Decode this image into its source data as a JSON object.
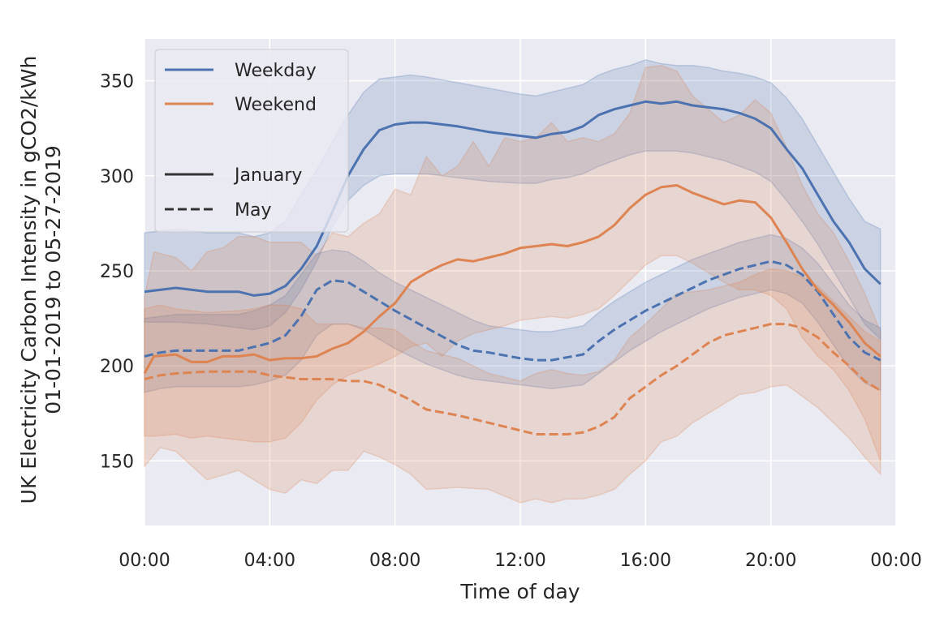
{
  "chart_data": {
    "type": "line",
    "xlabel": "Time of day",
    "ylabel_line1": "UK Electricity Carbon Intensity in gCO2/kWh",
    "ylabel_line2": "01-01-2019 to 05-27-2019",
    "xlim": [
      0,
      24
    ],
    "ylim": [
      116,
      372
    ],
    "x_ticks": [
      {
        "value": 0,
        "label": "00:00"
      },
      {
        "value": 4,
        "label": "04:00"
      },
      {
        "value": 8,
        "label": "08:00"
      },
      {
        "value": 12,
        "label": "12:00"
      },
      {
        "value": 16,
        "label": "16:00"
      },
      {
        "value": 20,
        "label": "20:00"
      },
      {
        "value": 24,
        "label": "00:00"
      }
    ],
    "y_ticks": [
      {
        "value": 150,
        "label": "150"
      },
      {
        "value": 200,
        "label": "200"
      },
      {
        "value": 250,
        "label": "250"
      },
      {
        "value": 300,
        "label": "300"
      },
      {
        "value": 350,
        "label": "350"
      }
    ],
    "grid": true,
    "legend_position": "top-left",
    "legend": {
      "hue": [
        {
          "label": "Weekday",
          "color": "#4c72b0"
        },
        {
          "label": "Weekend",
          "color": "#dd8452"
        }
      ],
      "style": [
        {
          "label": "January",
          "dash": "solid"
        },
        {
          "label": "May",
          "dash": "dashed"
        }
      ]
    },
    "colors": {
      "background": "#eaeaf2",
      "grid": "#ffffff",
      "weekday": "#4c72b0",
      "weekend": "#dd8452",
      "legend_line": "#333333"
    },
    "series": [
      {
        "name": "Weekday",
        "style": "January",
        "color": "#4c72b0",
        "dash": "solid",
        "x": [
          0,
          1,
          2,
          3,
          3.5,
          4,
          4.5,
          5,
          5.5,
          6,
          6.5,
          7,
          7.5,
          8,
          8.5,
          9,
          10,
          11,
          12,
          12.5,
          13,
          13.5,
          14,
          14.5,
          15,
          15.5,
          16,
          16.5,
          17,
          17.5,
          18,
          18.5,
          19,
          19.5,
          20,
          20.5,
          21,
          21.5,
          22,
          22.5,
          23,
          23.5
        ],
        "y": [
          239,
          241,
          239,
          239,
          237,
          238,
          242,
          251,
          263,
          281,
          300,
          314,
          324,
          327,
          328,
          328,
          326,
          323,
          321,
          320,
          322,
          323,
          326,
          332,
          335,
          337,
          339,
          338,
          339,
          337,
          336,
          335,
          333,
          330,
          325,
          314,
          304,
          290,
          276,
          265,
          251,
          243
        ],
        "lower": [
          223,
          223,
          222,
          220,
          219,
          221,
          228,
          240,
          255,
          273,
          287,
          295,
          300,
          301,
          301,
          301,
          299,
          297,
          296,
          296,
          298,
          299,
          301,
          305,
          308,
          311,
          313,
          313,
          313,
          312,
          310,
          308,
          305,
          302,
          297,
          287,
          276,
          264,
          250,
          236,
          222,
          214
        ],
        "upper": [
          270,
          272,
          270,
          270,
          268,
          270,
          276,
          290,
          303,
          318,
          332,
          344,
          351,
          352,
          353,
          352,
          349,
          346,
          343,
          342,
          344,
          346,
          348,
          353,
          356,
          358,
          361,
          359,
          358,
          358,
          357,
          355,
          354,
          352,
          349,
          341,
          330,
          316,
          302,
          288,
          276,
          272
        ]
      },
      {
        "name": "Weekday",
        "style": "May",
        "color": "#4c72b0",
        "dash": "dashed",
        "x": [
          0,
          0.5,
          1,
          2,
          3,
          3.5,
          4,
          4.5,
          5,
          5.5,
          6,
          6.5,
          7,
          7.5,
          8,
          9,
          10,
          10.5,
          11,
          12,
          12.5,
          13,
          14,
          14.5,
          15,
          15.5,
          16,
          16.5,
          17,
          17.5,
          18,
          18.5,
          19,
          19.5,
          20,
          20.5,
          21,
          21.5,
          22,
          22.5,
          23,
          23.5
        ],
        "y": [
          205,
          207,
          208,
          208,
          208,
          210,
          212,
          216,
          226,
          240,
          245,
          244,
          239,
          234,
          229,
          220,
          211,
          208,
          207,
          204,
          203,
          203,
          206,
          213,
          219,
          224,
          229,
          233,
          237,
          241,
          245,
          248,
          251,
          253,
          255,
          253,
          248,
          239,
          227,
          215,
          207,
          203
        ],
        "lower": [
          186,
          188,
          189,
          189,
          189,
          190,
          192,
          195,
          203,
          216,
          222,
          222,
          219,
          214,
          209,
          201,
          195,
          193,
          192,
          190,
          189,
          188,
          190,
          196,
          202,
          208,
          213,
          218,
          222,
          226,
          230,
          233,
          236,
          238,
          240,
          238,
          233,
          223,
          211,
          199,
          191,
          187
        ],
        "upper": [
          225,
          226,
          227,
          227,
          227,
          229,
          232,
          237,
          248,
          259,
          261,
          260,
          255,
          249,
          244,
          236,
          228,
          224,
          221,
          219,
          218,
          218,
          221,
          228,
          234,
          239,
          244,
          248,
          252,
          256,
          259,
          262,
          265,
          267,
          269,
          267,
          262,
          254,
          243,
          232,
          224,
          220
        ]
      },
      {
        "name": "Weekend",
        "style": "January",
        "color": "#dd8452",
        "dash": "solid",
        "x": [
          0,
          0.3,
          1,
          1.5,
          2,
          2.5,
          3,
          3.5,
          4,
          4.5,
          5,
          5.5,
          6,
          6.5,
          7,
          7.5,
          8,
          8.5,
          9,
          9.5,
          10,
          10.5,
          11,
          11.5,
          12,
          12.5,
          13,
          13.5,
          14,
          14.5,
          15,
          15.5,
          16,
          16.5,
          17,
          17.5,
          18,
          18.5,
          19,
          19.5,
          20,
          20.5,
          21,
          21.5,
          22,
          22.5,
          23,
          23.5
        ],
        "y": [
          196,
          205,
          206,
          202,
          202,
          205,
          205,
          206,
          203,
          204,
          204,
          205,
          209,
          212,
          218,
          226,
          233,
          244,
          249,
          253,
          256,
          255,
          257,
          259,
          262,
          263,
          264,
          263,
          265,
          268,
          274,
          283,
          290,
          294,
          295,
          291,
          288,
          285,
          287,
          286,
          278,
          265,
          251,
          240,
          232,
          223,
          212,
          205
        ],
        "lower": [
          163,
          163,
          164,
          162,
          163,
          162,
          161,
          160,
          160,
          162,
          170,
          182,
          190,
          195,
          198,
          201,
          205,
          210,
          212,
          205,
          213,
          217,
          219,
          221,
          224,
          225,
          226,
          225,
          227,
          230,
          237,
          245,
          253,
          258,
          258,
          254,
          249,
          244,
          240,
          240,
          237,
          230,
          215,
          205,
          198,
          187,
          172,
          150
        ],
        "upper": [
          236,
          260,
          257,
          250,
          260,
          262,
          268,
          268,
          265,
          265,
          265,
          258,
          270,
          268,
          275,
          280,
          293,
          290,
          310,
          300,
          305,
          318,
          305,
          320,
          318,
          320,
          328,
          318,
          320,
          318,
          322,
          333,
          357,
          358,
          355,
          342,
          335,
          328,
          332,
          340,
          333,
          315,
          295,
          280,
          270,
          255,
          238,
          218
        ]
      },
      {
        "name": "Weekend",
        "style": "May",
        "color": "#dd8452",
        "dash": "dashed",
        "x": [
          0,
          0.5,
          1,
          2,
          3,
          3.5,
          4,
          4.5,
          5,
          5.5,
          6,
          6.5,
          7,
          7.5,
          8,
          8.5,
          9,
          10,
          11,
          12,
          12.5,
          13,
          13.5,
          14,
          14.5,
          15,
          15.5,
          16,
          16.5,
          17,
          17.5,
          18,
          18.5,
          19,
          19.5,
          20,
          20.5,
          21,
          21.5,
          22,
          22.5,
          23,
          23.5
        ],
        "y": [
          193,
          195,
          196,
          197,
          197,
          197,
          195,
          194,
          193,
          193,
          193,
          192,
          192,
          190,
          186,
          182,
          177,
          174,
          170,
          166,
          164,
          164,
          164,
          165,
          168,
          173,
          183,
          189,
          195,
          200,
          206,
          212,
          216,
          218,
          220,
          222,
          222,
          220,
          215,
          207,
          200,
          192,
          187
        ],
        "lower": [
          147,
          157,
          155,
          140,
          145,
          140,
          135,
          133,
          140,
          138,
          145,
          145,
          155,
          152,
          148,
          143,
          135,
          136,
          135,
          128,
          130,
          128,
          130,
          130,
          132,
          135,
          143,
          150,
          160,
          163,
          170,
          175,
          180,
          185,
          186,
          189,
          190,
          184,
          178,
          170,
          162,
          152,
          143
        ],
        "upper": [
          230,
          232,
          230,
          228,
          229,
          230,
          232,
          232,
          230,
          222,
          222,
          222,
          220,
          220,
          219,
          213,
          208,
          204,
          196,
          192,
          196,
          198,
          196,
          195,
          197,
          203,
          215,
          222,
          230,
          238,
          239,
          240,
          242,
          244,
          248,
          251,
          250,
          247,
          242,
          234,
          226,
          218,
          213
        ]
      }
    ]
  }
}
